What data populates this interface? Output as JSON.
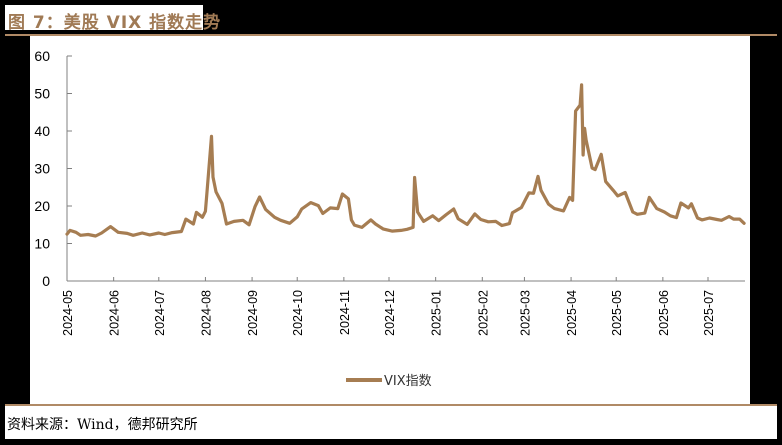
{
  "header": {
    "title": "图 7：美股 VIX 指数走势"
  },
  "footer": {
    "source": "资料来源：Wind，德邦研究所"
  },
  "colors": {
    "accent": "#b08a66",
    "series": "#a67d52",
    "title": "#a07a55",
    "axis": "#808080"
  },
  "chart_data": {
    "type": "line",
    "title": "美股 VIX 指数走势",
    "xlabel": "",
    "ylabel": "",
    "ylim": [
      0,
      60
    ],
    "yticks": [
      0,
      10,
      20,
      30,
      40,
      50,
      60
    ],
    "xticks": [
      "2024-05",
      "2024-06",
      "2024-07",
      "2024-08",
      "2024-09",
      "2024-10",
      "2024-11",
      "2024-12",
      "2025-01",
      "2025-02",
      "2025-03",
      "2025-04",
      "2025-05",
      "2025-06",
      "2025-07"
    ],
    "grid": false,
    "legend_position": "bottom",
    "series": [
      {
        "name": "VIX指数",
        "x": [
          "2024-05-01",
          "2024-05-03",
          "2024-05-07",
          "2024-05-10",
          "2024-05-15",
          "2024-05-20",
          "2024-05-24",
          "2024-05-30",
          "2024-06-04",
          "2024-06-10",
          "2024-06-14",
          "2024-06-20",
          "2024-06-25",
          "2024-07-01",
          "2024-07-05",
          "2024-07-10",
          "2024-07-16",
          "2024-07-19",
          "2024-07-24",
          "2024-07-26",
          "2024-07-30",
          "2024-08-01",
          "2024-08-02",
          "2024-08-05",
          "2024-08-06",
          "2024-08-08",
          "2024-08-12",
          "2024-08-15",
          "2024-08-20",
          "2024-08-26",
          "2024-08-30",
          "2024-09-03",
          "2024-09-06",
          "2024-09-10",
          "2024-09-16",
          "2024-09-20",
          "2024-09-26",
          "2024-10-01",
          "2024-10-04",
          "2024-10-10",
          "2024-10-15",
          "2024-10-18",
          "2024-10-23",
          "2024-10-28",
          "2024-10-31",
          "2024-11-04",
          "2024-11-06",
          "2024-11-08",
          "2024-11-13",
          "2024-11-19",
          "2024-11-22",
          "2024-11-27",
          "2024-12-03",
          "2024-12-09",
          "2024-12-13",
          "2024-12-17",
          "2024-12-18",
          "2024-12-20",
          "2024-12-24",
          "2024-12-30",
          "2025-01-03",
          "2025-01-08",
          "2025-01-13",
          "2025-01-16",
          "2025-01-22",
          "2025-01-27",
          "2025-01-31",
          "2025-02-05",
          "2025-02-10",
          "2025-02-14",
          "2025-02-19",
          "2025-02-21",
          "2025-02-27",
          "2025-03-04",
          "2025-03-07",
          "2025-03-10",
          "2025-03-12",
          "2025-03-17",
          "2025-03-21",
          "2025-03-27",
          "2025-03-31",
          "2025-04-02",
          "2025-04-04",
          "2025-04-07",
          "2025-04-08",
          "2025-04-09",
          "2025-04-10",
          "2025-04-11",
          "2025-04-15",
          "2025-04-17",
          "2025-04-21",
          "2025-04-24",
          "2025-04-29",
          "2025-05-02",
          "2025-05-07",
          "2025-05-12",
          "2025-05-15",
          "2025-05-20",
          "2025-05-23",
          "2025-05-28",
          "2025-06-02",
          "2025-06-06",
          "2025-06-10",
          "2025-06-13",
          "2025-06-18",
          "2025-06-20",
          "2025-06-24",
          "2025-06-27",
          "2025-07-02",
          "2025-07-07",
          "2025-07-10",
          "2025-07-15",
          "2025-07-18",
          "2025-07-22",
          "2025-07-25"
        ],
        "values": [
          12.5,
          13.5,
          13.0,
          12.2,
          12.4,
          12.0,
          12.8,
          14.5,
          13.0,
          12.7,
          12.2,
          12.8,
          12.3,
          12.8,
          12.4,
          12.9,
          13.2,
          16.5,
          15.2,
          18.3,
          17.0,
          18.6,
          23.4,
          38.6,
          27.7,
          23.8,
          20.7,
          15.2,
          15.9,
          16.2,
          15.0,
          19.9,
          22.4,
          19.1,
          17.0,
          16.2,
          15.4,
          17.1,
          19.2,
          20.9,
          20.1,
          18.0,
          19.5,
          19.3,
          23.2,
          21.9,
          16.3,
          14.9,
          14.3,
          16.3,
          15.2,
          13.9,
          13.3,
          13.5,
          13.8,
          14.3,
          27.6,
          18.4,
          15.9,
          17.4,
          16.1,
          17.7,
          19.2,
          16.6,
          15.1,
          17.9,
          16.4,
          15.8,
          15.9,
          14.8,
          15.3,
          18.2,
          19.6,
          23.5,
          23.4,
          27.9,
          24.2,
          20.5,
          19.3,
          18.7,
          22.3,
          21.5,
          45.3,
          46.9,
          52.3,
          33.6,
          40.7,
          37.6,
          30.1,
          29.7,
          33.8,
          26.5,
          24.2,
          22.7,
          23.6,
          18.4,
          17.8,
          18.1,
          22.3,
          19.3,
          18.4,
          17.4,
          16.9,
          20.8,
          19.5,
          20.6,
          16.8,
          16.3,
          16.8,
          16.4,
          16.2,
          17.2,
          16.5,
          16.5,
          15.4
        ]
      }
    ]
  }
}
